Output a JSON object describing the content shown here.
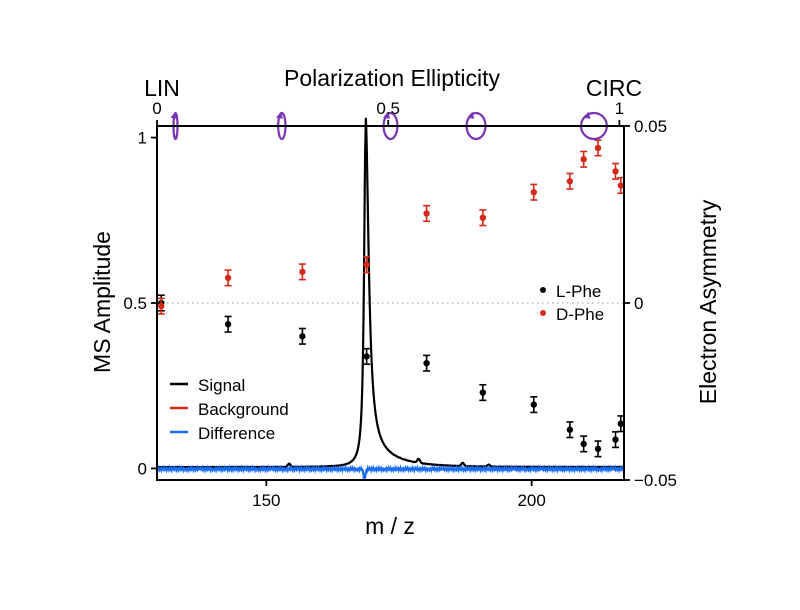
{
  "chart_data": {
    "type": "line",
    "title": "",
    "xlabel": "m / z",
    "ylabel": "MS Amplitude",
    "y2label": "Electron Asymmetry",
    "top_axis_label": "Polarization Ellipticity",
    "top_axis_left_annotation": "LIN",
    "top_axis_right_annotation": "CIRC",
    "xlim": [
      129.4,
      217.4
    ],
    "ylim": [
      -0.035,
      1.035
    ],
    "y2lim": [
      -0.05,
      0.05
    ],
    "top_xlim": [
      0,
      1.01
    ],
    "x_ticks": [
      150,
      200
    ],
    "x_tick_labels": [
      "150",
      "200"
    ],
    "y_ticks": [
      0,
      0.5,
      1
    ],
    "y_tick_labels": [
      "0",
      "0.5",
      "1"
    ],
    "y2_ticks": [
      -0.05,
      0,
      0.05
    ],
    "y2_tick_labels": [
      "−0.05",
      "0",
      "0.05"
    ],
    "top_ticks": [
      0,
      0.5,
      1
    ],
    "top_tick_labels": [
      "0",
      "0.5",
      "1"
    ],
    "zero_asymmetry_reference_line": true,
    "grid": false,
    "polarization_ellipse_markers": [
      {
        "ellipticity": 0.04,
        "label": "linear"
      },
      {
        "ellipticity": 0.27,
        "label": "elliptical"
      },
      {
        "ellipticity": 0.505,
        "label": "elliptical"
      },
      {
        "ellipticity": 0.69,
        "label": "elliptical"
      },
      {
        "ellipticity": 0.945,
        "label": "circular"
      }
    ],
    "spectrum": {
      "peak_mz": 168.7,
      "peak_amplitude": 1.0,
      "minor_peaks": [
        {
          "mz": 154.3,
          "amplitude": 0.01
        },
        {
          "mz": 178.7,
          "amplitude": 0.012
        },
        {
          "mz": 187.0,
          "amplitude": 0.01
        },
        {
          "mz": 191.9,
          "amplitude": 0.006
        }
      ],
      "difference_dip_mz": 168.5,
      "difference_dip_amplitude": -0.03
    },
    "line_series": [
      {
        "name": "Signal",
        "color": "#000000"
      },
      {
        "name": "Background",
        "color": "#d42a1a"
      },
      {
        "name": "Difference",
        "color": "#1a6ef5"
      }
    ],
    "series": [
      {
        "name": "L-Phe",
        "axis": "right",
        "color": "#000000",
        "x": [
          130.2,
          142.8,
          156.8,
          168.9,
          180.2,
          190.8,
          200.4,
          207.2,
          209.8,
          212.5,
          215.8,
          216.8
        ],
        "values": [
          0.0,
          -0.006,
          -0.0094,
          -0.0151,
          -0.017,
          -0.0253,
          -0.0287,
          -0.0358,
          -0.0398,
          -0.0412,
          -0.0386,
          -0.0341
        ],
        "error": 0.0022
      },
      {
        "name": "D-Phe",
        "axis": "right",
        "color": "#d42a1a",
        "x": [
          130.2,
          142.8,
          156.8,
          168.9,
          180.2,
          190.8,
          200.4,
          207.2,
          209.8,
          212.5,
          215.8,
          216.8
        ],
        "values": [
          -0.0009,
          0.0071,
          0.0088,
          0.0108,
          0.0253,
          0.0241,
          0.0313,
          0.0344,
          0.0406,
          0.0438,
          0.0372,
          0.0332
        ],
        "error": 0.0022
      }
    ],
    "legend_lines_placement": "lower-left",
    "legend_points_placement": "middle-right"
  },
  "colors": {
    "ellipse": "#7a35b5",
    "reference_line": "#aaaaaa"
  }
}
